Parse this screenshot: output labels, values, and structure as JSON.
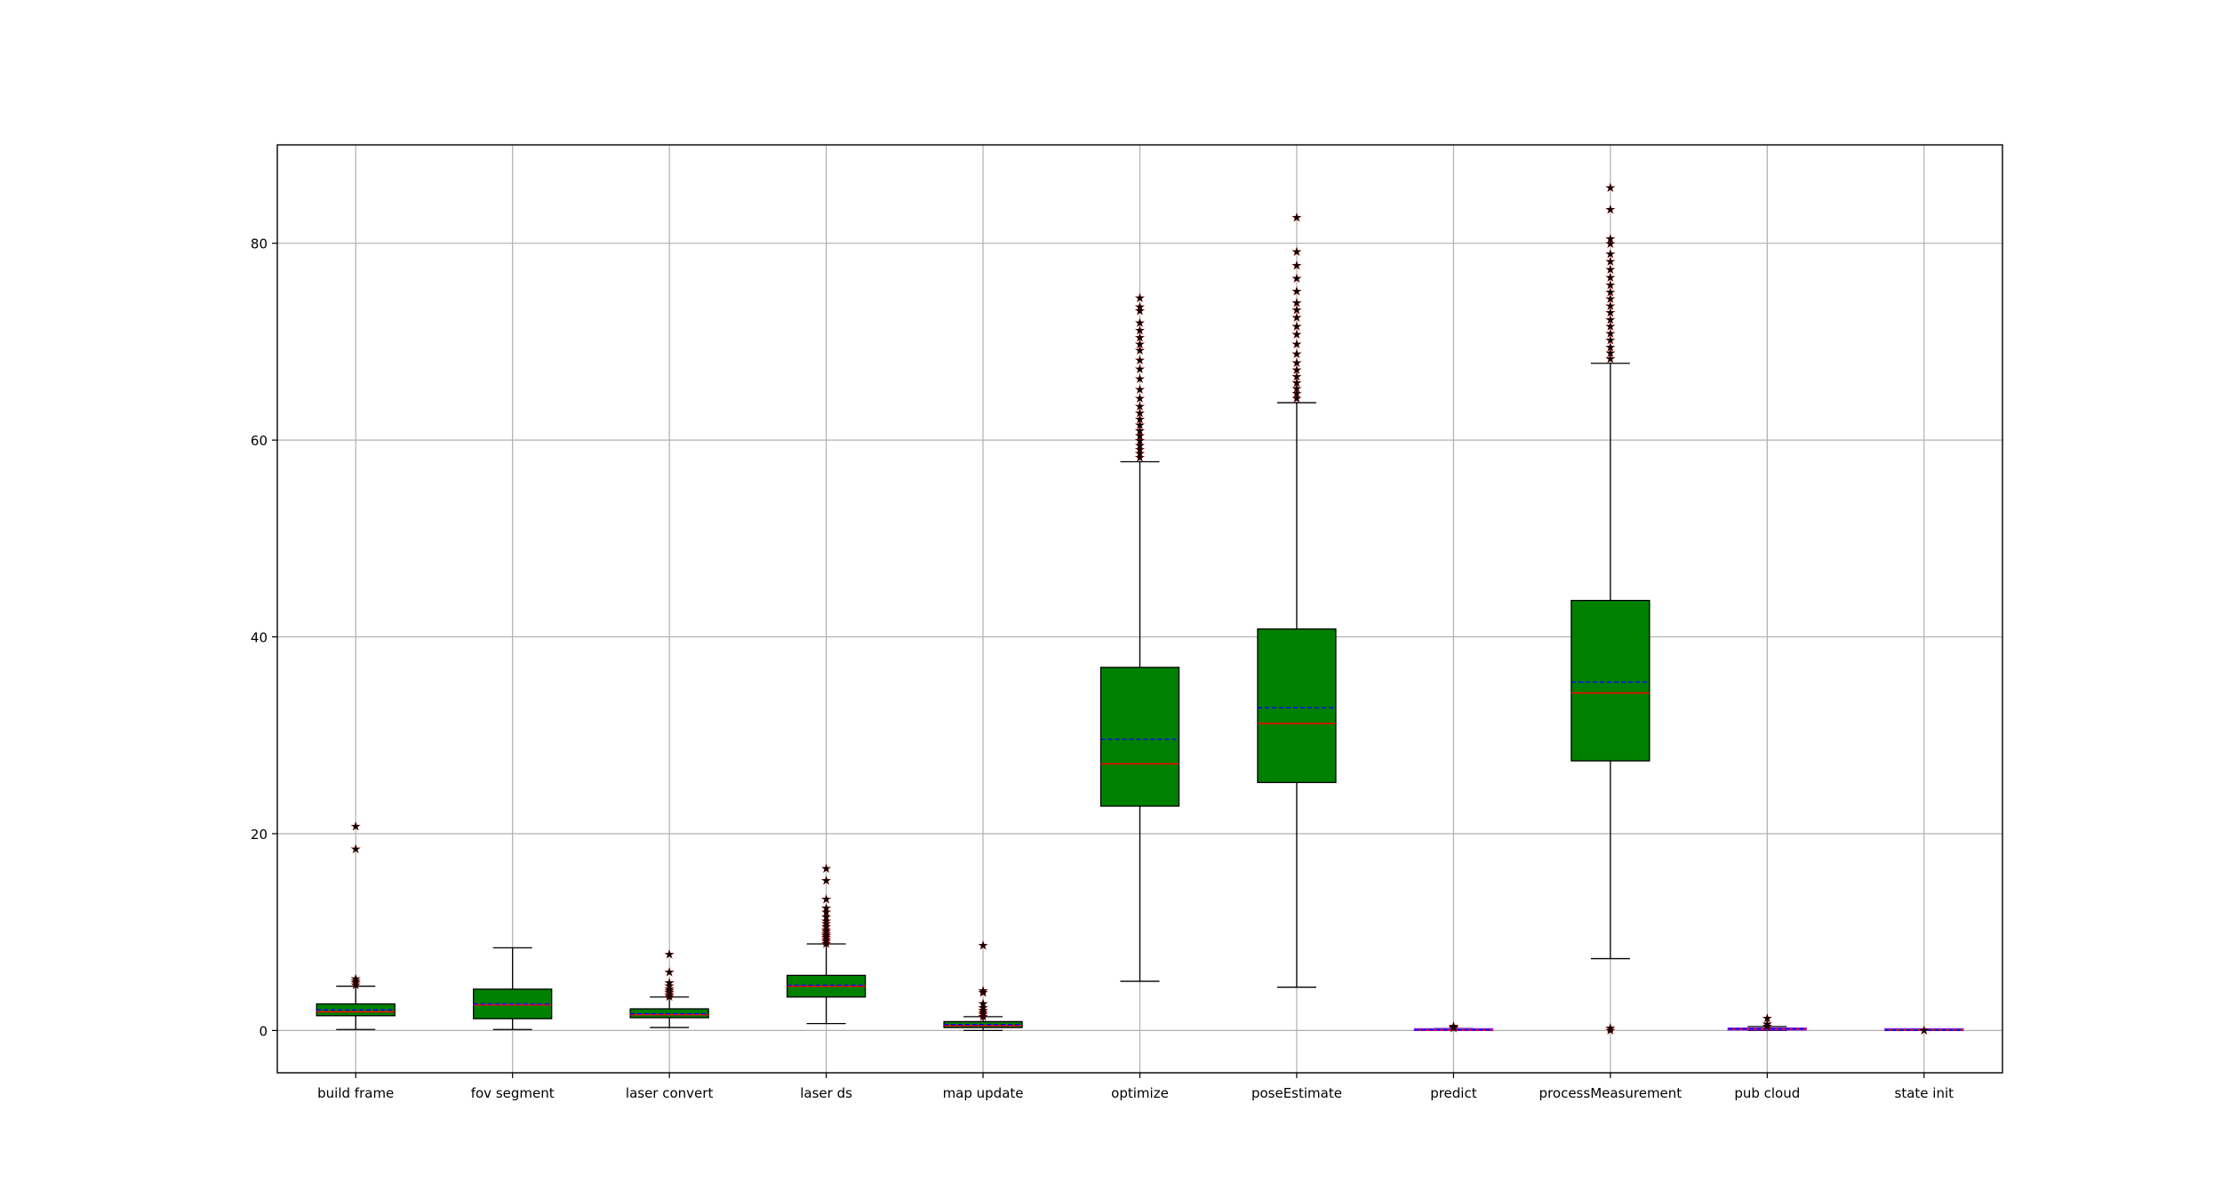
{
  "chart_data": {
    "type": "box",
    "title": "",
    "xlabel": "",
    "ylabel": "",
    "ylim": [
      -4.3,
      90
    ],
    "yticks": [
      0,
      20,
      40,
      60,
      80
    ],
    "grid": true,
    "colors": {
      "box_fill": "#008000",
      "box_edge": "#000000",
      "whisker": "#000000",
      "median": "#ff0000",
      "mean": "#0000ff",
      "flier": "#000000",
      "flier_edge": "#8b0000",
      "small_box_edge": "#8a2be2",
      "grid": "#b0b0b0"
    },
    "categories": [
      "build frame",
      "fov segment",
      "laser convert",
      "laser ds",
      "map update",
      "optimize",
      "poseEstimate",
      "predict",
      "processMeasurement",
      "pub cloud",
      "state init"
    ],
    "boxes": [
      {
        "q1": 1.5,
        "q3": 2.7,
        "median": 1.9,
        "mean": 2.1,
        "whisker_low": 0.1,
        "whisker_high": 4.5,
        "fliers": [
          4.7,
          4.9,
          5.1,
          5.3,
          18.5,
          20.8
        ]
      },
      {
        "q1": 1.2,
        "q3": 4.2,
        "median": 2.6,
        "mean": 2.7,
        "whisker_low": 0.1,
        "whisker_high": 8.4,
        "fliers": []
      },
      {
        "q1": 1.3,
        "q3": 2.2,
        "median": 1.6,
        "mean": 1.7,
        "whisker_low": 0.3,
        "whisker_high": 3.4,
        "fliers": [
          3.5,
          3.7,
          3.9,
          4.1,
          4.3,
          4.6,
          4.9,
          6.0,
          7.8
        ]
      },
      {
        "q1": 3.4,
        "q3": 5.6,
        "median": 4.5,
        "mean": 4.6,
        "whisker_low": 0.7,
        "whisker_high": 8.8,
        "fliers": [
          8.9,
          9.1,
          9.3,
          9.5,
          9.7,
          9.9,
          10.1,
          10.3,
          10.6,
          10.9,
          11.2,
          11.6,
          12.1,
          12.5,
          13.4,
          15.3,
          16.5
        ]
      },
      {
        "q1": 0.3,
        "q3": 0.9,
        "median": 0.5,
        "mean": 0.6,
        "whisker_low": 0.0,
        "whisker_high": 1.4,
        "fliers": [
          1.5,
          1.7,
          1.9,
          2.1,
          2.4,
          2.8,
          3.9,
          4.1,
          8.7
        ]
      },
      {
        "q1": 22.8,
        "q3": 36.9,
        "median": 27.1,
        "mean": 29.6,
        "whisker_low": 5.0,
        "whisker_high": 57.8,
        "fliers": [
          58.3,
          58.7,
          59.1,
          59.5,
          60.0,
          60.5,
          61.0,
          61.6,
          62.2,
          62.8,
          63.5,
          64.3,
          65.2,
          66.3,
          67.3,
          68.2,
          69.2,
          69.8,
          70.5,
          71.2,
          72.0,
          73.2,
          73.6,
          74.5
        ]
      },
      {
        "q1": 25.2,
        "q3": 40.8,
        "median": 31.2,
        "mean": 32.8,
        "whisker_low": 4.4,
        "whisker_high": 63.8,
        "fliers": [
          64.3,
          64.8,
          65.3,
          65.9,
          66.5,
          67.2,
          67.9,
          68.8,
          69.8,
          70.8,
          71.6,
          72.5,
          73.3,
          74.0,
          75.2,
          76.5,
          77.8,
          79.2,
          82.7
        ]
      },
      {
        "q1": 0.0,
        "q3": 0.15,
        "median": 0.05,
        "mean": 0.07,
        "whisker_low": 0.0,
        "whisker_high": 0.2,
        "fliers": [
          0.3,
          0.4,
          0.5
        ]
      },
      {
        "q1": 27.4,
        "q3": 43.7,
        "median": 34.3,
        "mean": 35.4,
        "whisker_low": 7.3,
        "whisker_high": 67.8,
        "fliers": [
          0.1,
          0.3,
          68.3,
          68.9,
          69.5,
          70.2,
          70.9,
          71.6,
          72.3,
          73.0,
          73.7,
          74.4,
          75.1,
          75.8,
          76.6,
          77.4,
          78.2,
          79.0,
          80.0,
          80.5,
          83.5,
          85.7
        ]
      },
      {
        "q1": 0.05,
        "q3": 0.25,
        "median": 0.15,
        "mean": 0.16,
        "whisker_low": 0.0,
        "whisker_high": 0.4,
        "fliers": [
          0.5,
          0.7,
          1.3
        ]
      },
      {
        "q1": 0.0,
        "q3": 0.05,
        "median": 0.02,
        "mean": 0.02,
        "whisker_low": 0.0,
        "whisker_high": 0.08,
        "fliers": [
          0.1
        ]
      }
    ]
  }
}
